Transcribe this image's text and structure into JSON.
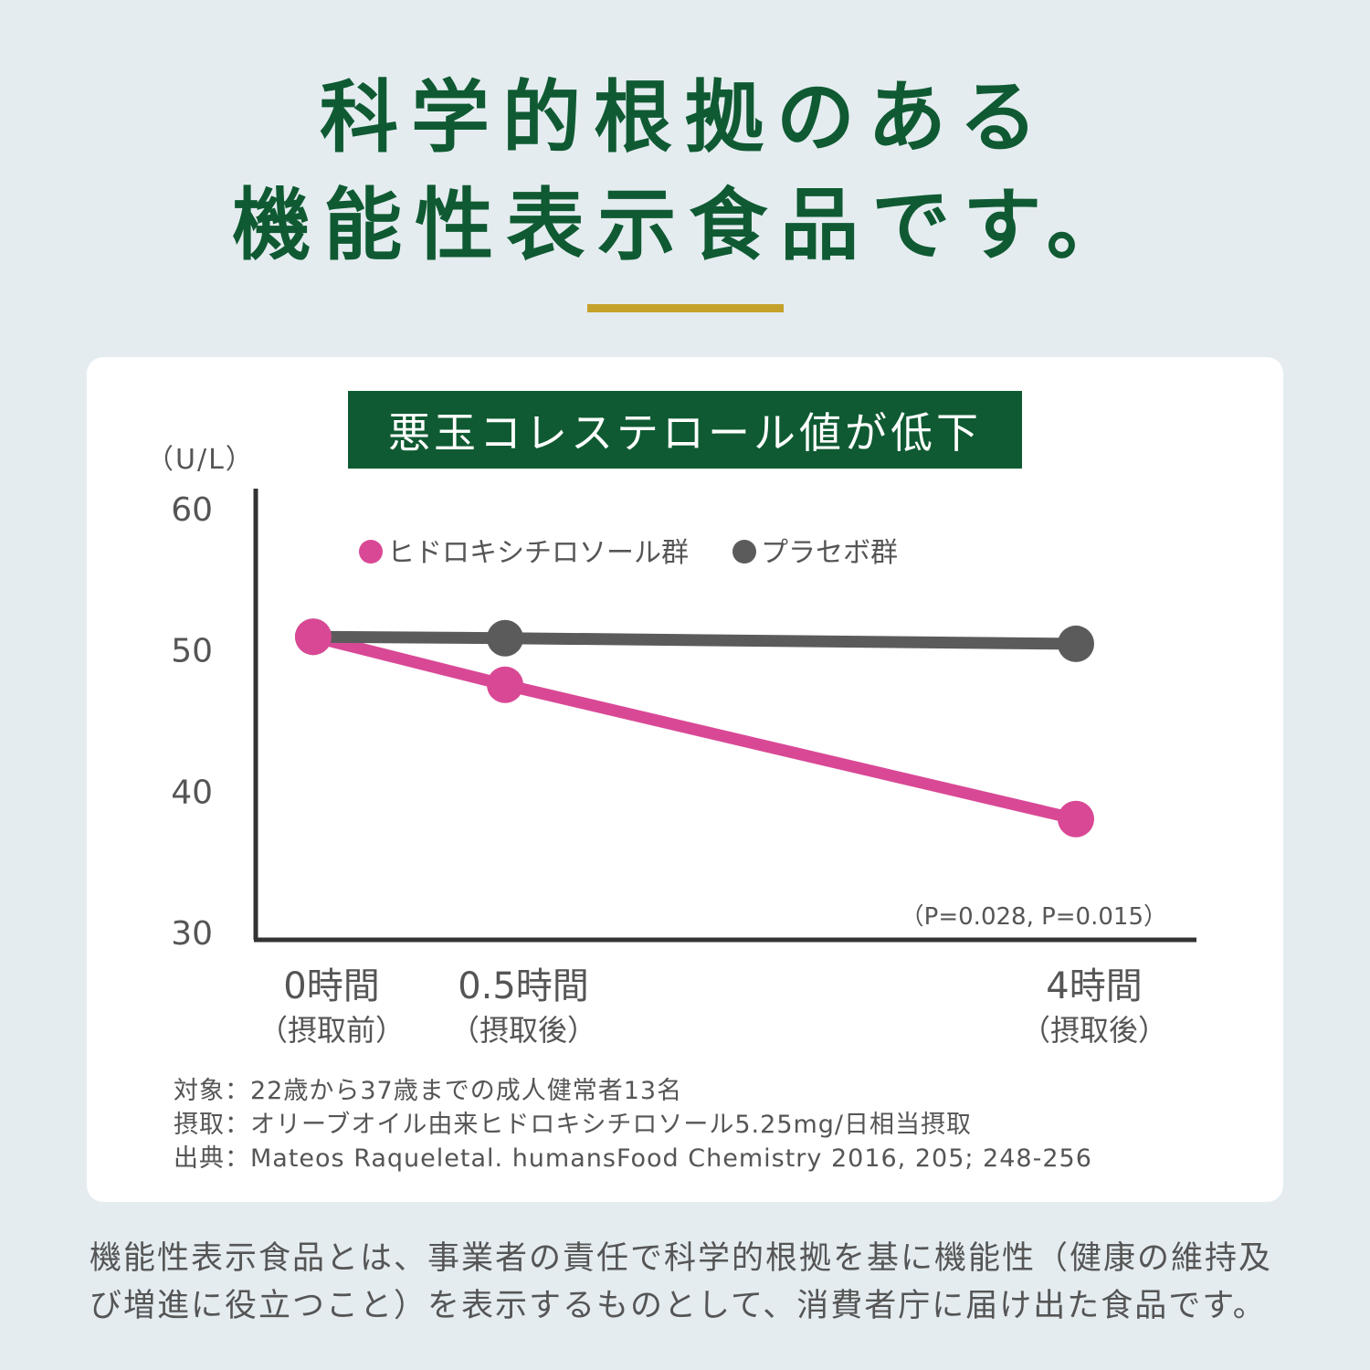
{
  "headline": {
    "line1": "科学的根拠のある",
    "line2": "機能性表示食品です。"
  },
  "colors": {
    "green": "#0f5a32",
    "gold": "#c4a22a",
    "pink": "#d94895",
    "gray": "#5b5b5b",
    "background": "#e4ecf0"
  },
  "chart_data": {
    "type": "line",
    "title": "悪玉コレステロール値が低下",
    "unit": "（U/L）",
    "ylim": [
      30,
      60
    ],
    "yticks": [
      "60",
      "50",
      "40",
      "30"
    ],
    "x": [
      0,
      0.5,
      4
    ],
    "categories": [
      {
        "main": "0時間",
        "sub": "（摂取前）"
      },
      {
        "main": "0.5時間",
        "sub": "（摂取後）"
      },
      {
        "main": "4時間",
        "sub": "（摂取後）"
      }
    ],
    "series": [
      {
        "name": "ヒドロキシチロソール群",
        "color": "#d94895",
        "values": [
          51,
          47.6,
          38.1
        ]
      },
      {
        "name": "プラセボ群",
        "color": "#5b5b5b",
        "values": [
          51,
          50.9,
          50.5
        ]
      }
    ],
    "legend_position": "top-left",
    "annotation": "（P=0.028, P=0.015）",
    "grid": false
  },
  "notes": [
    "対象：22歳から37歳までの成人健常者13名",
    "摂取：オリーブオイル由来ヒドロキシチロソール5.25mg/日相当摂取",
    "出典：Mateos Raqueletal. humansFood Chemistry 2016, 205; 248-256"
  ],
  "footer": {
    "line1": "機能性表示食品とは、事業者の責任で科学的根拠を基に機能性（健康の維持及",
    "line2": "び増進に役立つこと）を表示するものとして、消費者庁に届け出た食品です。"
  }
}
